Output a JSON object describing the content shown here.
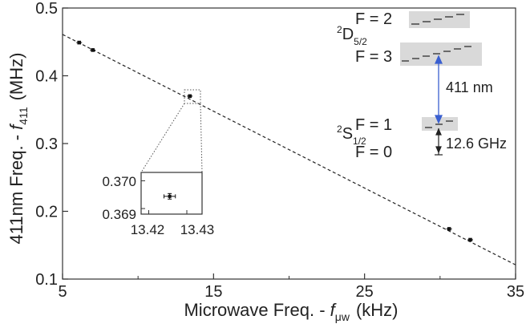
{
  "chart_data": {
    "type": "scatter",
    "xlabel": {
      "main": "Microwave Freq. - ",
      "f": "f",
      "sub": "μw",
      "unit": "(kHz)"
    },
    "ylabel": {
      "main": "411nm Freq. - ",
      "f": "f",
      "sub": "411",
      "unit": "(MHz)"
    },
    "xlim": [
      5,
      35
    ],
    "ylim": [
      0.1,
      0.5
    ],
    "xticks": [
      {
        "v": 5,
        "label": "5"
      },
      {
        "v": 15,
        "label": "15"
      },
      {
        "v": 25,
        "label": "25"
      },
      {
        "v": 35,
        "label": "35"
      }
    ],
    "yticks": [
      {
        "v": 0.1,
        "label": "0.1"
      },
      {
        "v": 0.2,
        "label": "0.2"
      },
      {
        "v": 0.3,
        "label": "0.3"
      },
      {
        "v": 0.4,
        "label": "0.4"
      },
      {
        "v": 0.5,
        "label": "0.5"
      }
    ],
    "minor_xticks": [
      10,
      20,
      30
    ],
    "series": [
      {
        "points": [
          {
            "x": 6.1,
            "y": 0.449
          },
          {
            "x": 7.0,
            "y": 0.438
          },
          {
            "x": 13.43,
            "y": 0.37
          },
          {
            "x": 30.6,
            "y": 0.174
          },
          {
            "x": 32.0,
            "y": 0.158
          }
        ]
      }
    ],
    "fit_line": {
      "x1": 5,
      "y1": 0.461,
      "x2": 35,
      "y2": 0.121,
      "style": "dashed"
    },
    "inset": {
      "xticks": [
        {
          "v": 13.42,
          "label": "13.42"
        },
        {
          "v": 13.43,
          "label": "13.43"
        }
      ],
      "yticks": [
        {
          "v": 0.37,
          "label": "0.370"
        },
        {
          "v": 0.369,
          "label": "0.369"
        }
      ],
      "xlim": [
        13.418,
        13.434
      ],
      "ylim": [
        0.3688,
        0.3703
      ],
      "point": {
        "x": 13.4255,
        "y": 0.36944,
        "xerr": 0.0015,
        "yerr": 0.0001
      }
    },
    "level_diagram": {
      "d_state": {
        "name": "D",
        "sup": "2",
        "sub": "5/2",
        "f_upper": "F = 2",
        "f_lower": "F = 3"
      },
      "s_state": {
        "name": "S",
        "sup": "2",
        "sub": "1/2",
        "f_upper": "F = 1",
        "f_lower": "F = 0"
      },
      "transition_label": "411 nm",
      "splitting_label": "12.6 GHz",
      "colors": {
        "band": "#d9d9d9",
        "arrow": "#3a5fd0",
        "marks": "#222222"
      }
    }
  }
}
